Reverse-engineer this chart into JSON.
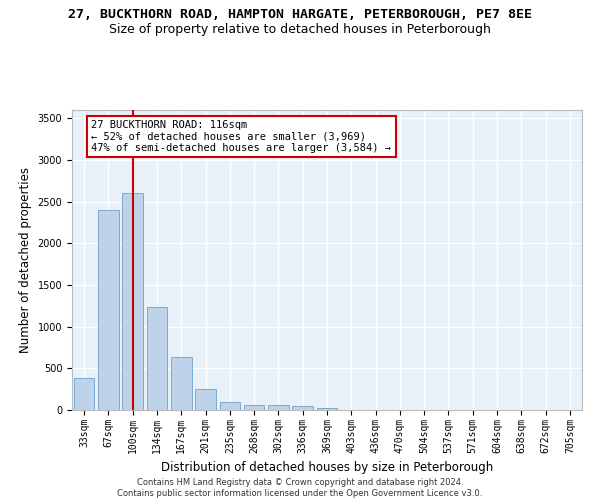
{
  "title_line1": "27, BUCKTHORN ROAD, HAMPTON HARGATE, PETERBOROUGH, PE7 8EE",
  "title_line2": "Size of property relative to detached houses in Peterborough",
  "xlabel": "Distribution of detached houses by size in Peterborough",
  "ylabel": "Number of detached properties",
  "categories": [
    "33sqm",
    "67sqm",
    "100sqm",
    "134sqm",
    "167sqm",
    "201sqm",
    "235sqm",
    "268sqm",
    "302sqm",
    "336sqm",
    "369sqm",
    "403sqm",
    "436sqm",
    "470sqm",
    "504sqm",
    "537sqm",
    "571sqm",
    "604sqm",
    "638sqm",
    "672sqm",
    "705sqm"
  ],
  "values": [
    390,
    2400,
    2610,
    1240,
    640,
    255,
    100,
    60,
    60,
    45,
    30,
    0,
    0,
    0,
    0,
    0,
    0,
    0,
    0,
    0,
    0
  ],
  "bar_color": "#bed3ea",
  "bar_edgecolor": "#7aabd1",
  "vline_x_index": 2,
  "vline_color": "#cc0000",
  "annotation_text": "27 BUCKTHORN ROAD: 116sqm\n← 52% of detached houses are smaller (3,969)\n47% of semi-detached houses are larger (3,584) →",
  "annotation_box_color": "#ffffff",
  "annotation_box_edgecolor": "#cc0000",
  "ylim": [
    0,
    3600
  ],
  "yticks": [
    0,
    500,
    1000,
    1500,
    2000,
    2500,
    3000,
    3500
  ],
  "bg_color": "#e8f0f8",
  "grid_color": "#ffffff",
  "footer": "Contains HM Land Registry data © Crown copyright and database right 2024.\nContains public sector information licensed under the Open Government Licence v3.0.",
  "title_fontsize": 9.5,
  "subtitle_fontsize": 9,
  "axis_label_fontsize": 8.5,
  "tick_fontsize": 7,
  "annotation_fontsize": 7.5,
  "footer_fontsize": 6
}
